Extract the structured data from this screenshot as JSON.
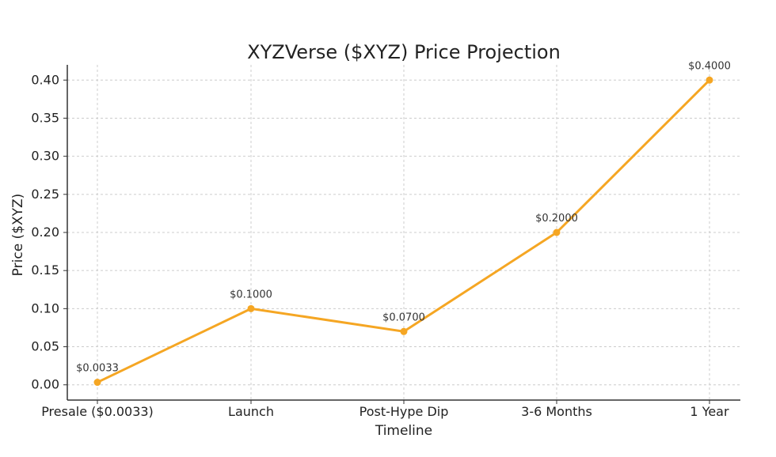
{
  "chart_data": {
    "type": "line",
    "title": "XYZVerse ($XYZ) Price Projection",
    "xlabel": "Timeline",
    "ylabel": "Price ($XYZ)",
    "categories": [
      "Presale ($0.0033)",
      "Launch",
      "Post-Hype Dip",
      "3-6 Months",
      "1 Year"
    ],
    "series": [
      {
        "values": [
          0.0033,
          0.1,
          0.07,
          0.2,
          0.4
        ],
        "data_labels": [
          "$0.0033",
          "$0.1000",
          "$0.0700",
          "$0.2000",
          "$0.4000"
        ],
        "color": "#f5a623"
      }
    ],
    "ylim": [
      -0.02,
      0.42
    ],
    "yticks": [
      0.0,
      0.05,
      0.1,
      0.15,
      0.2,
      0.25,
      0.3,
      0.35,
      0.4
    ],
    "ytick_labels": [
      "0.00",
      "0.05",
      "0.10",
      "0.15",
      "0.20",
      "0.25",
      "0.30",
      "0.35",
      "0.40"
    ],
    "grid": true,
    "colors": {
      "line": "#f5a623",
      "grid": "#cccccc",
      "axis": "#333333"
    }
  }
}
